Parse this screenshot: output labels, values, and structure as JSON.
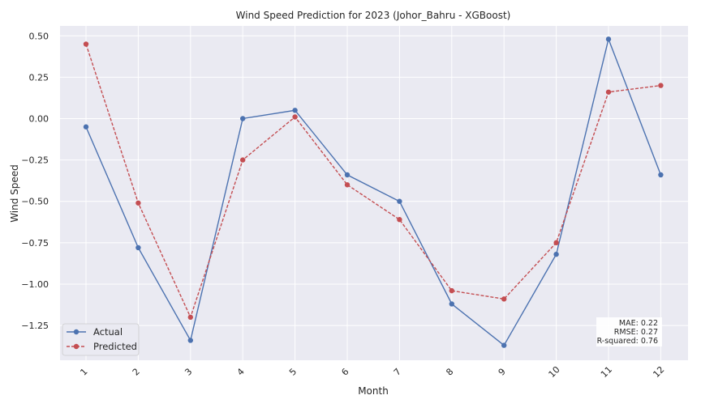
{
  "chart_data": {
    "type": "line",
    "title": "Wind Speed Prediction for 2023 (Johor_Bahru - XGBoost)",
    "xlabel": "Month",
    "ylabel": "Wind Speed",
    "categories": [
      "1",
      "2",
      "3",
      "4",
      "5",
      "6",
      "7",
      "8",
      "9",
      "10",
      "11",
      "12"
    ],
    "y_ticks": [
      "0.50",
      "0.25",
      "0.00",
      "−0.25",
      "−0.50",
      "−0.75",
      "−1.00",
      "−1.25"
    ],
    "ylim": [
      -1.46,
      0.56
    ],
    "grid": true,
    "legend_position": "lower-left",
    "series": [
      {
        "name": "Actual",
        "color": "#4c72b0",
        "style": "solid",
        "values": [
          -0.05,
          -0.78,
          -1.34,
          0.0,
          0.05,
          -0.34,
          -0.5,
          -1.12,
          -1.37,
          -0.82,
          0.48,
          -0.34
        ]
      },
      {
        "name": "Predicted",
        "color": "#c44e52",
        "style": "dashed",
        "values": [
          0.45,
          -0.51,
          -1.2,
          -0.25,
          0.01,
          -0.4,
          -0.61,
          -1.04,
          -1.09,
          -0.75,
          0.16,
          0.2
        ]
      }
    ],
    "metrics": [
      "MAE: 0.22",
      "RMSE: 0.27",
      "R-squared: 0.76"
    ],
    "colors": {
      "plot_background": "#eaeaf2",
      "grid": "#ffffff"
    }
  }
}
